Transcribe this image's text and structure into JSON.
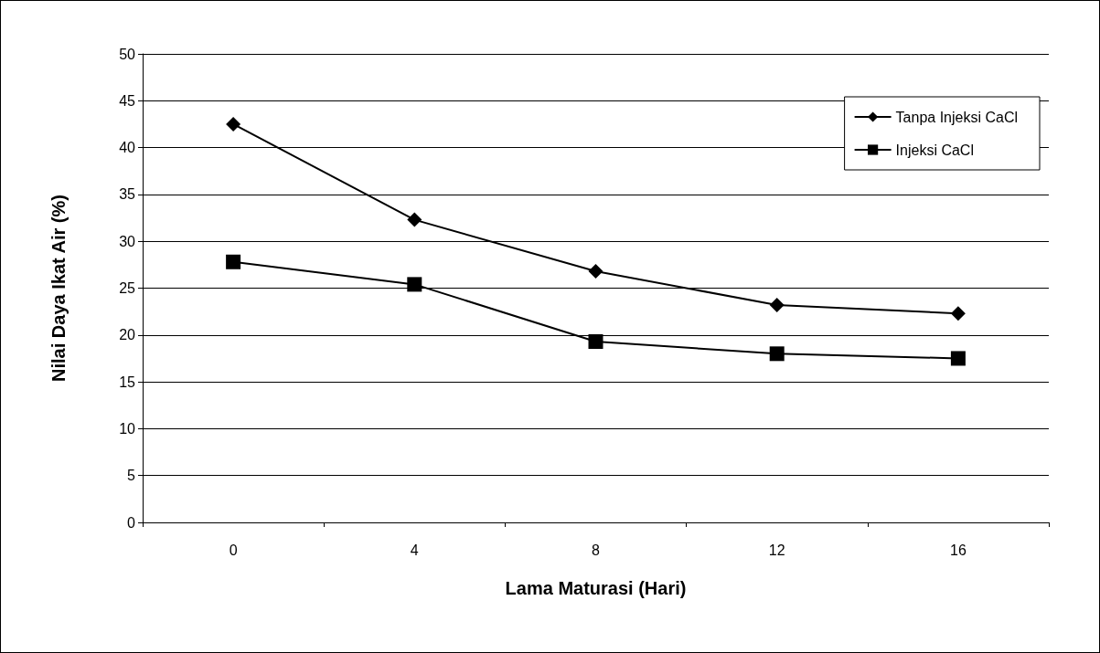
{
  "chart_data": {
    "type": "line",
    "xlabel": "Lama Maturasi (Hari)",
    "ylabel": "Nilai Daya Ikat Air (%)",
    "categories": [
      "0",
      "4",
      "8",
      "12",
      "16"
    ],
    "series": [
      {
        "name": "Tanpa Injeksi CaCl",
        "color": "#000000",
        "marker": "diamond",
        "values": [
          42.5,
          32.3,
          26.8,
          23.2,
          22.3
        ]
      },
      {
        "name": "Injeksi CaCl",
        "color": "#000000",
        "marker": "square",
        "values": [
          27.8,
          25.4,
          19.3,
          18.0,
          17.5
        ]
      }
    ],
    "ylim": [
      0,
      50
    ],
    "yticks": [
      0,
      5,
      10,
      15,
      20,
      25,
      30,
      35,
      40,
      45,
      50
    ],
    "grid": "y",
    "legend": "top right",
    "line_style": "solid"
  }
}
